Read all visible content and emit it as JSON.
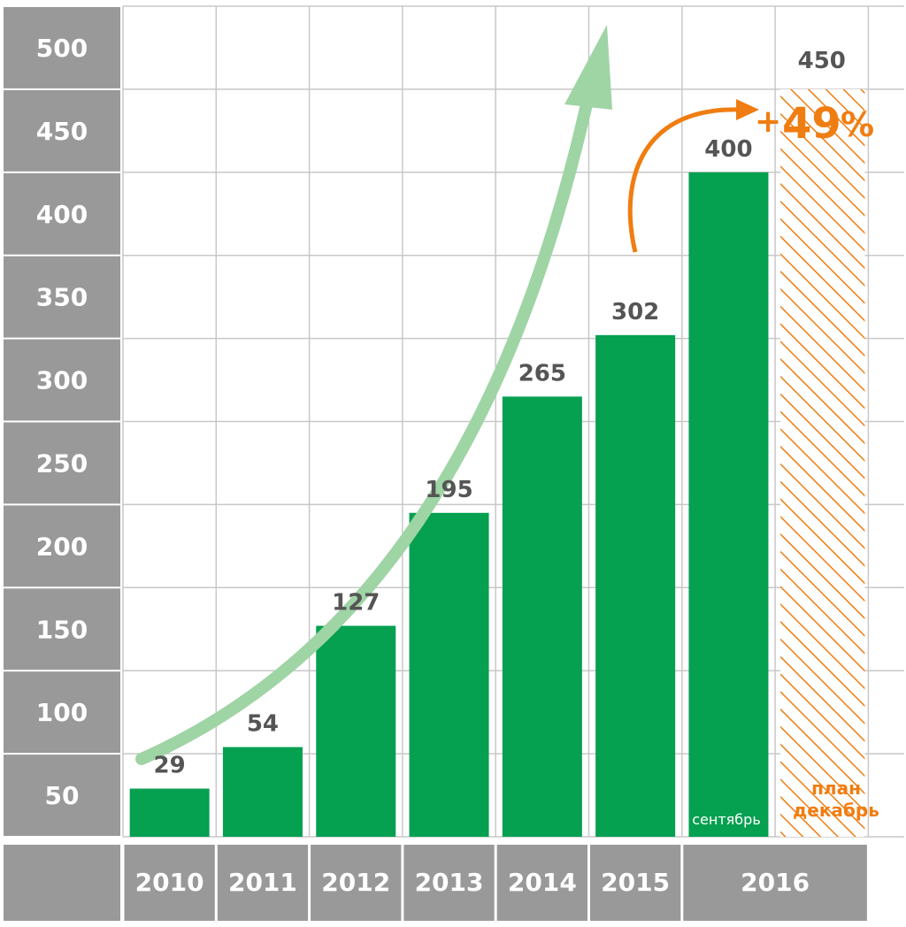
{
  "chart_data": {
    "type": "bar",
    "categories": [
      "2010",
      "2011",
      "2012",
      "2013",
      "2014",
      "2015",
      "2016",
      "2016"
    ],
    "x_labels": [
      "2010",
      "2011",
      "2012",
      "2013",
      "2014",
      "2015",
      "2016"
    ],
    "values": [
      29,
      54,
      127,
      195,
      265,
      302,
      400,
      450
    ],
    "value_labels": [
      "29",
      "54",
      "127",
      "195",
      "265",
      "302",
      "400",
      "450"
    ],
    "y_ticks": [
      "50",
      "100",
      "150",
      "200",
      "250",
      "300",
      "350",
      "400",
      "450",
      "500"
    ],
    "ylim": [
      0,
      500
    ],
    "grid": true,
    "bar_notes": {
      "actual_2016": "сентябрь",
      "plan_line1": "план",
      "plan_line2": "декабрь"
    },
    "growth_annotation": {
      "plus": "+",
      "value": "49",
      "percent": "%"
    },
    "colors": {
      "bar": "#05a050",
      "plan": "#f07d11",
      "trend_arrow": "#9fd4a5",
      "axis_bg": "#999999",
      "grid": "#c8c8c8",
      "value_text": "#555555"
    }
  }
}
